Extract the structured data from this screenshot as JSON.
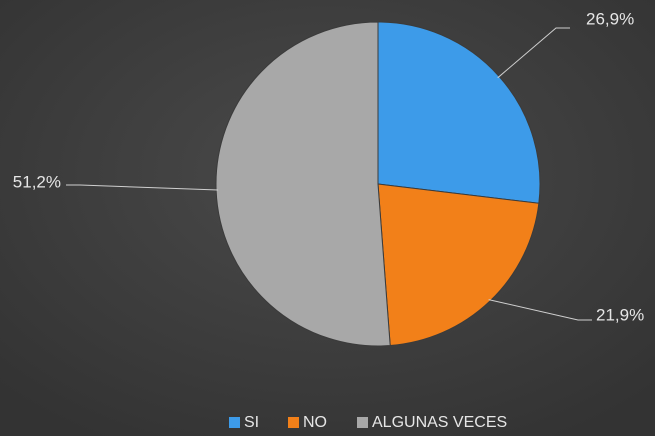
{
  "chart_data": {
    "type": "pie",
    "categories": [
      "SI",
      "NO",
      "ALGUNAS VECES"
    ],
    "values": [
      26.9,
      21.9,
      51.2
    ],
    "value_labels": [
      "26,9%",
      "21,9%",
      "51,2%"
    ],
    "colors": [
      "#3d9be9",
      "#f28019",
      "#a8a8a8"
    ],
    "legend": "bottom"
  }
}
